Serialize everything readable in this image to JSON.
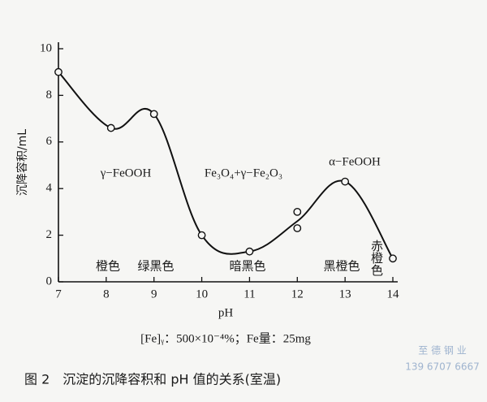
{
  "chart_data": {
    "type": "line",
    "x_label": "pH",
    "y_label": "沉降容积/mL",
    "xlim": [
      7,
      14
    ],
    "xticks": [
      7,
      8,
      9,
      10,
      11,
      12,
      13,
      14
    ],
    "ylim": [
      0,
      10
    ],
    "yticks": [
      0,
      2,
      4,
      6,
      8,
      10
    ],
    "curve": {
      "x": [
        7,
        8.1,
        9,
        10,
        11,
        12,
        13,
        14
      ],
      "values": [
        9.0,
        6.6,
        7.2,
        2.0,
        1.3,
        2.6,
        4.3,
        1.0
      ]
    },
    "points": {
      "x": [
        7,
        8.1,
        9,
        10,
        11,
        12,
        12,
        13,
        14
      ],
      "values": [
        9.0,
        6.6,
        7.2,
        2.0,
        1.3,
        3.0,
        2.3,
        4.3,
        1.0
      ]
    },
    "annotations": [
      "γ−FeOOH",
      "Fe₃O₄+γ−Fe₂O₃",
      "α−FeOOH",
      "橙色",
      "绿黑色",
      "暗黑色",
      "黑橙色",
      "赤橙色"
    ],
    "note": "[Fe]ᵧ：500×10⁻⁴%；Fe量：25mg",
    "caption": "图 2　沉淀的沉降容积和 pH 值的关系(室温)",
    "watermark": [
      "至 德 钢 业",
      "139 6707 6667"
    ]
  }
}
